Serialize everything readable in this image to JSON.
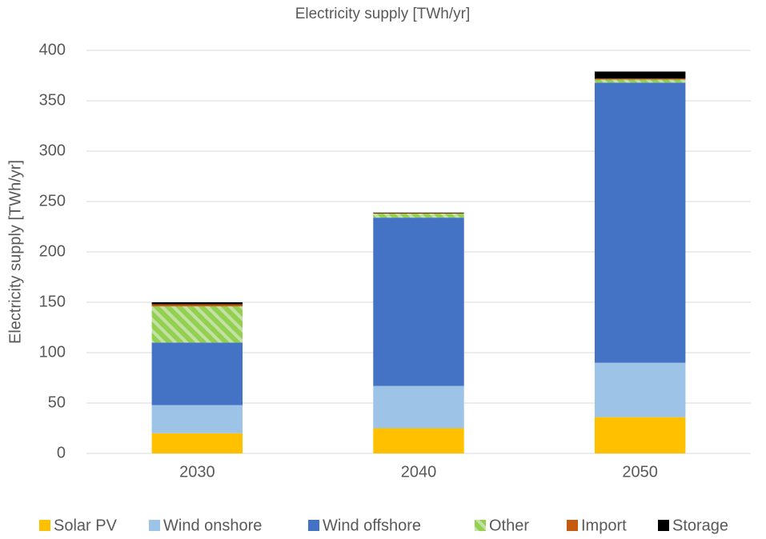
{
  "chart_data": {
    "type": "stacked_bar",
    "title": "Electricity supply [TWh/yr]",
    "y_label": "Electricity supply [TWh/yr]",
    "categories": [
      "2030",
      "2040",
      "2050"
    ],
    "series": [
      {
        "name": "Solar PV",
        "color": "#ffc000",
        "values": [
          20,
          25,
          36
        ]
      },
      {
        "name": "Wind onshore",
        "color": "#9dc3e6",
        "values": [
          28,
          42,
          54
        ]
      },
      {
        "name": "Wind offshore",
        "color": "#4472c4",
        "values": [
          62,
          167,
          278
        ]
      },
      {
        "name": "Other",
        "color": "#92d050",
        "pattern": "hatch",
        "values": [
          36,
          4,
          3
        ]
      },
      {
        "name": "Import",
        "color": "#c55a11",
        "values": [
          2,
          0.5,
          1
        ]
      },
      {
        "name": "Storage",
        "color": "#000000",
        "values": [
          2,
          0.5,
          7
        ]
      }
    ],
    "ylim": [
      0,
      400
    ],
    "yticks": [
      0,
      50,
      100,
      150,
      200,
      250,
      300,
      350,
      400
    ],
    "grid": true,
    "legend": "bottom"
  }
}
